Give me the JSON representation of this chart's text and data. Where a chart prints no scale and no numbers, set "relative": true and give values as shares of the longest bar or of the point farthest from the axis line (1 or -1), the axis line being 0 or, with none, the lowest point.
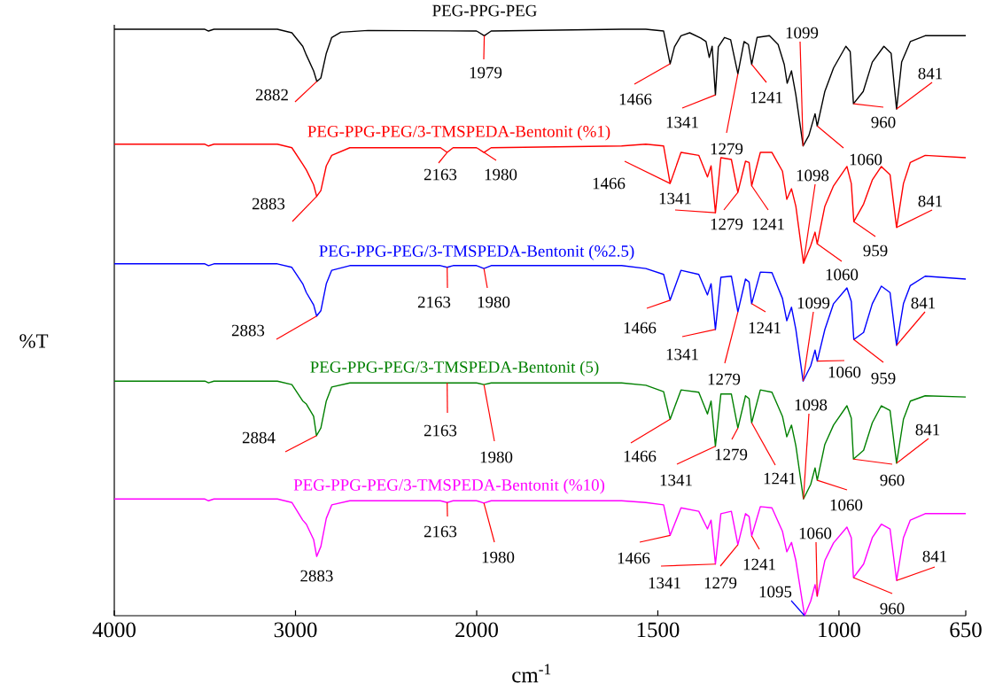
{
  "chart_data": [
    {
      "type": "line",
      "relative": true,
      "ylabel": "%T",
      "xlim": [
        4000,
        2000
      ],
      "xticks": [
        4000,
        3000,
        2000
      ],
      "series": [
        {
          "name": "PEG-PPG-PEG",
          "color": "#000000",
          "x": [
            4000,
            3500,
            3480,
            3450,
            3100,
            3020,
            2960,
            2940,
            2900,
            2882,
            2860,
            2830,
            2800,
            2750,
            2600,
            2000
          ],
          "values": [
            1.0,
            1.0,
            0.997,
            1.0,
            1.0,
            0.994,
            0.971,
            0.956,
            0.929,
            0.911,
            0.917,
            0.959,
            0.986,
            0.995,
            0.998,
            0.997
          ]
        },
        {
          "name": "PEG-PPG-PEG/3-TMSPEDA-Bentonit (%1)",
          "color": "#ff0000",
          "x": [
            4000,
            3500,
            3480,
            3450,
            3100,
            3020,
            2960,
            2940,
            2900,
            2883,
            2860,
            2830,
            2800,
            2700,
            2600,
            2200,
            2163,
            2130,
            2000
          ],
          "values": [
            0.804,
            0.804,
            0.801,
            0.804,
            0.804,
            0.798,
            0.77,
            0.76,
            0.735,
            0.715,
            0.725,
            0.767,
            0.785,
            0.798,
            0.798,
            0.798,
            0.79,
            0.798,
            0.798
          ]
        },
        {
          "name": "PEG-PPG-PEG/3-TMSPEDA-Bentonit (%2.5)",
          "color": "#0000ff",
          "x": [
            4000,
            3500,
            3480,
            3450,
            3100,
            3020,
            2960,
            2940,
            2900,
            2883,
            2860,
            2830,
            2800,
            2700,
            2600,
            2200,
            2163,
            2130,
            2000
          ],
          "values": [
            0.6,
            0.6,
            0.597,
            0.6,
            0.6,
            0.594,
            0.566,
            0.551,
            0.53,
            0.511,
            0.52,
            0.566,
            0.589,
            0.597,
            0.597,
            0.597,
            0.594,
            0.597,
            0.597
          ]
        },
        {
          "name": "PEG-PPG-PEG/3-TMSPEDA-Bentonit (5)",
          "color": "#008000",
          "x": [
            4000,
            3500,
            3480,
            3450,
            3100,
            3020,
            2960,
            2940,
            2900,
            2884,
            2860,
            2830,
            2800,
            2700,
            2600,
            2200,
            2163,
            2130,
            2000
          ],
          "values": [
            0.4,
            0.4,
            0.397,
            0.4,
            0.4,
            0.394,
            0.366,
            0.361,
            0.34,
            0.307,
            0.32,
            0.366,
            0.39,
            0.397,
            0.397,
            0.397,
            0.397,
            0.397,
            0.397
          ]
        },
        {
          "name": "PEG-PPG-PEG/3-TMSPEDA-Bentonit (%10)",
          "color": "#ff00ff",
          "x": [
            4000,
            3500,
            3480,
            3450,
            3100,
            3020,
            2960,
            2940,
            2900,
            2883,
            2860,
            2830,
            2800,
            2700,
            2600,
            2200,
            2163,
            2130,
            2000
          ],
          "values": [
            0.199,
            0.199,
            0.196,
            0.199,
            0.199,
            0.193,
            0.163,
            0.156,
            0.13,
            0.101,
            0.118,
            0.166,
            0.189,
            0.196,
            0.196,
            0.196,
            0.193,
            0.196,
            0.196
          ]
        }
      ],
      "annotations": [
        {
          "text": "2882",
          "x": 2882,
          "y": 0.911
        },
        {
          "text": "2883",
          "x": 2883,
          "y": 0.715
        },
        {
          "text": "2163",
          "x": 2163,
          "y": 0.79
        },
        {
          "text": "2883",
          "x": 2883,
          "y": 0.511
        },
        {
          "text": "2163",
          "x": 2163,
          "y": 0.594
        },
        {
          "text": "2884",
          "x": 2884,
          "y": 0.307
        },
        {
          "text": "2163",
          "x": 2163,
          "y": 0.397
        },
        {
          "text": "2883",
          "x": 2883,
          "y": 0.101
        },
        {
          "text": "2163",
          "x": 2163,
          "y": 0.193
        }
      ]
    },
    {
      "type": "line",
      "relative": true,
      "xlabel": "cm$^{-1}$",
      "xlim": [
        2000,
        650
      ],
      "xticks": [
        1500,
        1000,
        650
      ],
      "series": [
        {
          "color": "#000000",
          "x": [
            2000,
            1979,
            1960,
            1600,
            1533,
            1484,
            1466,
            1454,
            1436,
            1412,
            1382,
            1367,
            1358,
            1350,
            1341,
            1333,
            1316,
            1299,
            1279,
            1262,
            1250,
            1241,
            1226,
            1192,
            1168,
            1151,
            1143,
            1131,
            1119,
            1099,
            1083,
            1066,
            1060,
            1039,
            1015,
            981,
            969,
            960,
            933,
            908,
            876,
            856,
            841,
            827,
            803,
            762,
            650
          ],
          "values": [
            0.997,
            0.989,
            0.997,
            1.0,
            1.0,
            0.997,
            0.941,
            0.97,
            0.989,
            0.994,
            0.985,
            0.979,
            0.952,
            0.971,
            0.888,
            0.97,
            0.986,
            0.982,
            0.924,
            0.979,
            0.974,
            0.94,
            0.986,
            0.989,
            0.974,
            0.94,
            0.908,
            0.929,
            0.888,
            0.801,
            0.819,
            0.856,
            0.835,
            0.894,
            0.934,
            0.971,
            0.962,
            0.873,
            0.894,
            0.944,
            0.971,
            0.959,
            0.864,
            0.944,
            0.979,
            0.989,
            0.989
          ]
        },
        {
          "color": "#ff0000",
          "x": [
            2000,
            1980,
            1960,
            1600,
            1533,
            1484,
            1466,
            1436,
            1387,
            1363,
            1353,
            1341,
            1326,
            1297,
            1279,
            1258,
            1248,
            1241,
            1217,
            1185,
            1156,
            1144,
            1131,
            1119,
            1098,
            1078,
            1066,
            1060,
            1039,
            1015,
            978,
            966,
            959,
            932,
            908,
            883,
            859,
            841,
            822,
            803,
            762,
            650
          ],
          "values": [
            0.798,
            0.79,
            0.798,
            0.801,
            0.804,
            0.801,
            0.737,
            0.79,
            0.785,
            0.748,
            0.767,
            0.687,
            0.781,
            0.778,
            0.722,
            0.775,
            0.773,
            0.733,
            0.79,
            0.79,
            0.758,
            0.71,
            0.728,
            0.698,
            0.601,
            0.631,
            0.654,
            0.634,
            0.698,
            0.733,
            0.766,
            0.737,
            0.672,
            0.702,
            0.743,
            0.766,
            0.752,
            0.662,
            0.737,
            0.773,
            0.785,
            0.781
          ]
        },
        {
          "color": "#0000ff",
          "x": [
            2000,
            1980,
            1960,
            1600,
            1533,
            1484,
            1466,
            1436,
            1387,
            1363,
            1353,
            1341,
            1326,
            1297,
            1279,
            1258,
            1248,
            1241,
            1217,
            1185,
            1156,
            1144,
            1131,
            1119,
            1099,
            1078,
            1066,
            1060,
            1039,
            1015,
            978,
            966,
            959,
            932,
            908,
            883,
            859,
            841,
            822,
            803,
            762,
            650
          ],
          "values": [
            0.597,
            0.592,
            0.597,
            0.597,
            0.592,
            0.582,
            0.538,
            0.589,
            0.582,
            0.547,
            0.566,
            0.488,
            0.577,
            0.579,
            0.518,
            0.574,
            0.569,
            0.532,
            0.586,
            0.585,
            0.541,
            0.503,
            0.526,
            0.488,
            0.4,
            0.426,
            0.453,
            0.434,
            0.488,
            0.532,
            0.559,
            0.536,
            0.471,
            0.483,
            0.532,
            0.562,
            0.551,
            0.461,
            0.532,
            0.563,
            0.579,
            0.574
          ]
        },
        {
          "color": "#008000",
          "x": [
            2000,
            1980,
            1960,
            1600,
            1533,
            1484,
            1466,
            1436,
            1387,
            1363,
            1353,
            1341,
            1326,
            1297,
            1279,
            1258,
            1248,
            1241,
            1217,
            1185,
            1156,
            1144,
            1131,
            1119,
            1098,
            1078,
            1066,
            1060,
            1039,
            1015,
            978,
            966,
            960,
            932,
            908,
            883,
            859,
            841,
            822,
            803,
            762,
            650
          ],
          "values": [
            0.397,
            0.394,
            0.397,
            0.397,
            0.393,
            0.382,
            0.335,
            0.385,
            0.381,
            0.344,
            0.366,
            0.289,
            0.378,
            0.378,
            0.32,
            0.375,
            0.37,
            0.329,
            0.385,
            0.381,
            0.34,
            0.305,
            0.325,
            0.29,
            0.199,
            0.224,
            0.252,
            0.231,
            0.292,
            0.325,
            0.358,
            0.337,
            0.267,
            0.282,
            0.329,
            0.358,
            0.35,
            0.26,
            0.335,
            0.366,
            0.375,
            0.373
          ]
        },
        {
          "color": "#ff00ff",
          "x": [
            2000,
            1980,
            1960,
            1600,
            1533,
            1484,
            1466,
            1436,
            1387,
            1363,
            1353,
            1341,
            1326,
            1297,
            1279,
            1258,
            1248,
            1241,
            1217,
            1185,
            1156,
            1144,
            1131,
            1119,
            1095,
            1078,
            1066,
            1060,
            1039,
            1015,
            978,
            966,
            960,
            932,
            908,
            883,
            859,
            841,
            822,
            803,
            762,
            650
          ],
          "values": [
            0.196,
            0.192,
            0.196,
            0.196,
            0.193,
            0.189,
            0.137,
            0.184,
            0.178,
            0.148,
            0.163,
            0.088,
            0.174,
            0.178,
            0.121,
            0.174,
            0.169,
            0.136,
            0.186,
            0.184,
            0.144,
            0.109,
            0.125,
            0.094,
            0.0,
            0.025,
            0.053,
            0.033,
            0.094,
            0.124,
            0.151,
            0.133,
            0.065,
            0.088,
            0.133,
            0.156,
            0.148,
            0.06,
            0.133,
            0.163,
            0.174,
            0.174
          ]
        }
      ],
      "annotations": [
        {
          "text": "1979",
          "x": 1979,
          "y": 0.989
        },
        {
          "text": "1466",
          "x": 1466,
          "y": 0.941
        },
        {
          "text": "1341",
          "x": 1341,
          "y": 0.888
        },
        {
          "text": "1279",
          "x": 1279,
          "y": 0.924
        },
        {
          "text": "1241",
          "x": 1241,
          "y": 0.94
        },
        {
          "text": "1099",
          "x": 1099,
          "y": 0.801
        },
        {
          "text": "1060",
          "x": 1060,
          "y": 0.835
        },
        {
          "text": "960",
          "x": 960,
          "y": 0.873
        },
        {
          "text": "841",
          "x": 841,
          "y": 0.864
        },
        {
          "text": "1980",
          "x": 1980,
          "y": 0.79
        },
        {
          "text": "1466",
          "x": 1466,
          "y": 0.737
        },
        {
          "text": "1341",
          "x": 1341,
          "y": 0.687
        },
        {
          "text": "1279",
          "x": 1279,
          "y": 0.722
        },
        {
          "text": "1241",
          "x": 1241,
          "y": 0.733
        },
        {
          "text": "1098",
          "x": 1098,
          "y": 0.601
        },
        {
          "text": "1060",
          "x": 1060,
          "y": 0.634
        },
        {
          "text": "959",
          "x": 959,
          "y": 0.672
        },
        {
          "text": "841",
          "x": 841,
          "y": 0.662
        },
        {
          "text": "1980",
          "x": 1980,
          "y": 0.592
        },
        {
          "text": "1466",
          "x": 1466,
          "y": 0.538
        },
        {
          "text": "1341",
          "x": 1341,
          "y": 0.488
        },
        {
          "text": "1279",
          "x": 1279,
          "y": 0.518
        },
        {
          "text": "1241",
          "x": 1241,
          "y": 0.532
        },
        {
          "text": "1099",
          "x": 1099,
          "y": 0.4
        },
        {
          "text": "1060",
          "x": 1060,
          "y": 0.434
        },
        {
          "text": "959",
          "x": 959,
          "y": 0.471
        },
        {
          "text": "841",
          "x": 841,
          "y": 0.461
        },
        {
          "text": "1980",
          "x": 1980,
          "y": 0.394
        },
        {
          "text": "1466",
          "x": 1466,
          "y": 0.335
        },
        {
          "text": "1341",
          "x": 1341,
          "y": 0.289
        },
        {
          "text": "1279",
          "x": 1279,
          "y": 0.32
        },
        {
          "text": "1241",
          "x": 1241,
          "y": 0.329
        },
        {
          "text": "1098",
          "x": 1098,
          "y": 0.199
        },
        {
          "text": "1060",
          "x": 1060,
          "y": 0.231
        },
        {
          "text": "960",
          "x": 960,
          "y": 0.267
        },
        {
          "text": "841",
          "x": 841,
          "y": 0.26
        },
        {
          "text": "1980",
          "x": 1980,
          "y": 0.192
        },
        {
          "text": "1466",
          "x": 1466,
          "y": 0.137
        },
        {
          "text": "1341",
          "x": 1341,
          "y": 0.088
        },
        {
          "text": "1279",
          "x": 1279,
          "y": 0.121
        },
        {
          "text": "1241",
          "x": 1241,
          "y": 0.136
        },
        {
          "text": "1095",
          "x": 1095,
          "y": 0.0
        },
        {
          "text": "1060",
          "x": 1060,
          "y": 0.033
        },
        {
          "text": "960",
          "x": 960,
          "y": 0.065
        },
        {
          "text": "841",
          "x": 841,
          "y": 0.06
        }
      ]
    }
  ]
}
